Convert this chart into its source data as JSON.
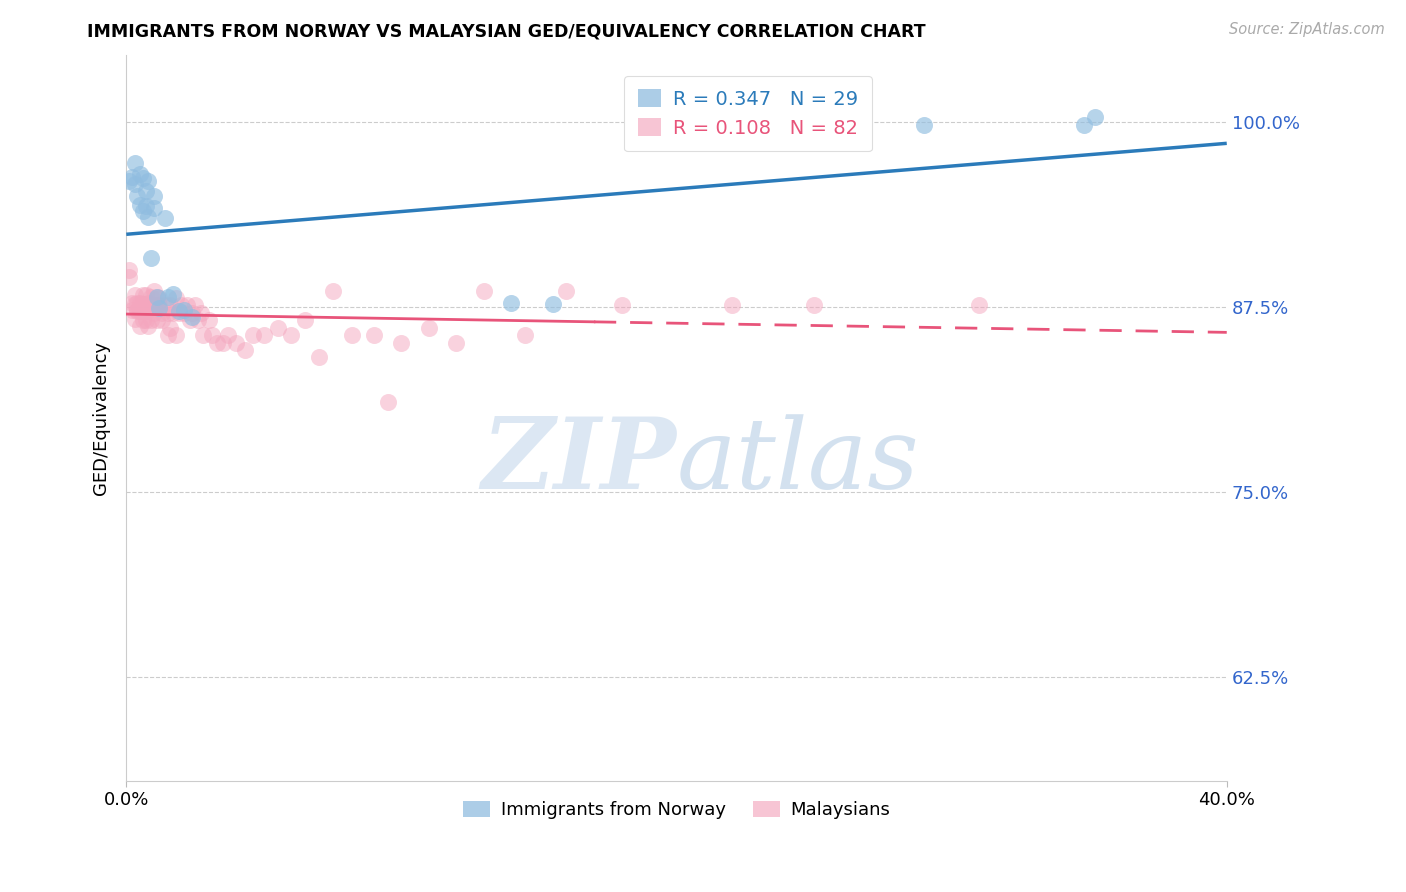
{
  "title": "IMMIGRANTS FROM NORWAY VS MALAYSIAN GED/EQUIVALENCY CORRELATION CHART",
  "source": "Source: ZipAtlas.com",
  "ylabel": "GED/Equivalency",
  "xlim": [
    0.0,
    0.4
  ],
  "ylim": [
    0.555,
    1.045
  ],
  "yticks": [
    0.625,
    0.75,
    0.875,
    1.0
  ],
  "ytick_labels": [
    "62.5%",
    "75.0%",
    "87.5%",
    "100.0%"
  ],
  "xtick_labels": [
    "0.0%",
    "40.0%"
  ],
  "norway_R": "0.347",
  "norway_N": "29",
  "malaysia_R": "0.108",
  "malaysia_N": "82",
  "norway_color": "#90bde0",
  "malaysia_color": "#f4a6be",
  "norway_line_color": "#2b7bba",
  "malaysia_line_color": "#e8547a",
  "background_color": "#ffffff",
  "norway_x": [
    0.001,
    0.002,
    0.003,
    0.003,
    0.004,
    0.005,
    0.005,
    0.006,
    0.006,
    0.007,
    0.007,
    0.008,
    0.008,
    0.009,
    0.01,
    0.01,
    0.011,
    0.012,
    0.014,
    0.015,
    0.017,
    0.019,
    0.021,
    0.024,
    0.14,
    0.155,
    0.29,
    0.348,
    0.352
  ],
  "norway_y": [
    0.96,
    0.963,
    0.958,
    0.972,
    0.95,
    0.944,
    0.965,
    0.94,
    0.962,
    0.943,
    0.953,
    0.96,
    0.936,
    0.908,
    0.95,
    0.942,
    0.882,
    0.874,
    0.935,
    0.882,
    0.884,
    0.872,
    0.873,
    0.868,
    0.878,
    0.877,
    0.998,
    0.998,
    1.003
  ],
  "malaysia_x": [
    0.001,
    0.001,
    0.002,
    0.002,
    0.003,
    0.003,
    0.003,
    0.004,
    0.004,
    0.004,
    0.005,
    0.005,
    0.005,
    0.006,
    0.006,
    0.006,
    0.006,
    0.007,
    0.007,
    0.007,
    0.007,
    0.008,
    0.008,
    0.008,
    0.009,
    0.009,
    0.009,
    0.01,
    0.01,
    0.01,
    0.011,
    0.011,
    0.011,
    0.012,
    0.012,
    0.013,
    0.013,
    0.014,
    0.015,
    0.015,
    0.016,
    0.016,
    0.017,
    0.018,
    0.018,
    0.019,
    0.02,
    0.021,
    0.022,
    0.023,
    0.024,
    0.025,
    0.026,
    0.027,
    0.028,
    0.03,
    0.031,
    0.033,
    0.035,
    0.037,
    0.04,
    0.043,
    0.046,
    0.05,
    0.055,
    0.06,
    0.065,
    0.07,
    0.075,
    0.082,
    0.09,
    0.095,
    0.1,
    0.11,
    0.12,
    0.13,
    0.145,
    0.16,
    0.18,
    0.22,
    0.25,
    0.31
  ],
  "malaysia_y": [
    0.9,
    0.895,
    0.878,
    0.873,
    0.883,
    0.877,
    0.867,
    0.873,
    0.878,
    0.872,
    0.878,
    0.872,
    0.862,
    0.883,
    0.877,
    0.872,
    0.866,
    0.883,
    0.877,
    0.872,
    0.866,
    0.878,
    0.872,
    0.862,
    0.882,
    0.876,
    0.866,
    0.886,
    0.876,
    0.871,
    0.882,
    0.876,
    0.866,
    0.881,
    0.876,
    0.871,
    0.866,
    0.876,
    0.871,
    0.856,
    0.876,
    0.861,
    0.871,
    0.881,
    0.856,
    0.871,
    0.876,
    0.871,
    0.876,
    0.866,
    0.871,
    0.876,
    0.866,
    0.871,
    0.856,
    0.866,
    0.856,
    0.851,
    0.851,
    0.856,
    0.851,
    0.846,
    0.856,
    0.856,
    0.861,
    0.856,
    0.866,
    0.841,
    0.886,
    0.856,
    0.856,
    0.811,
    0.851,
    0.861,
    0.851,
    0.886,
    0.856,
    0.886,
    0.876,
    0.876,
    0.876,
    0.876
  ]
}
